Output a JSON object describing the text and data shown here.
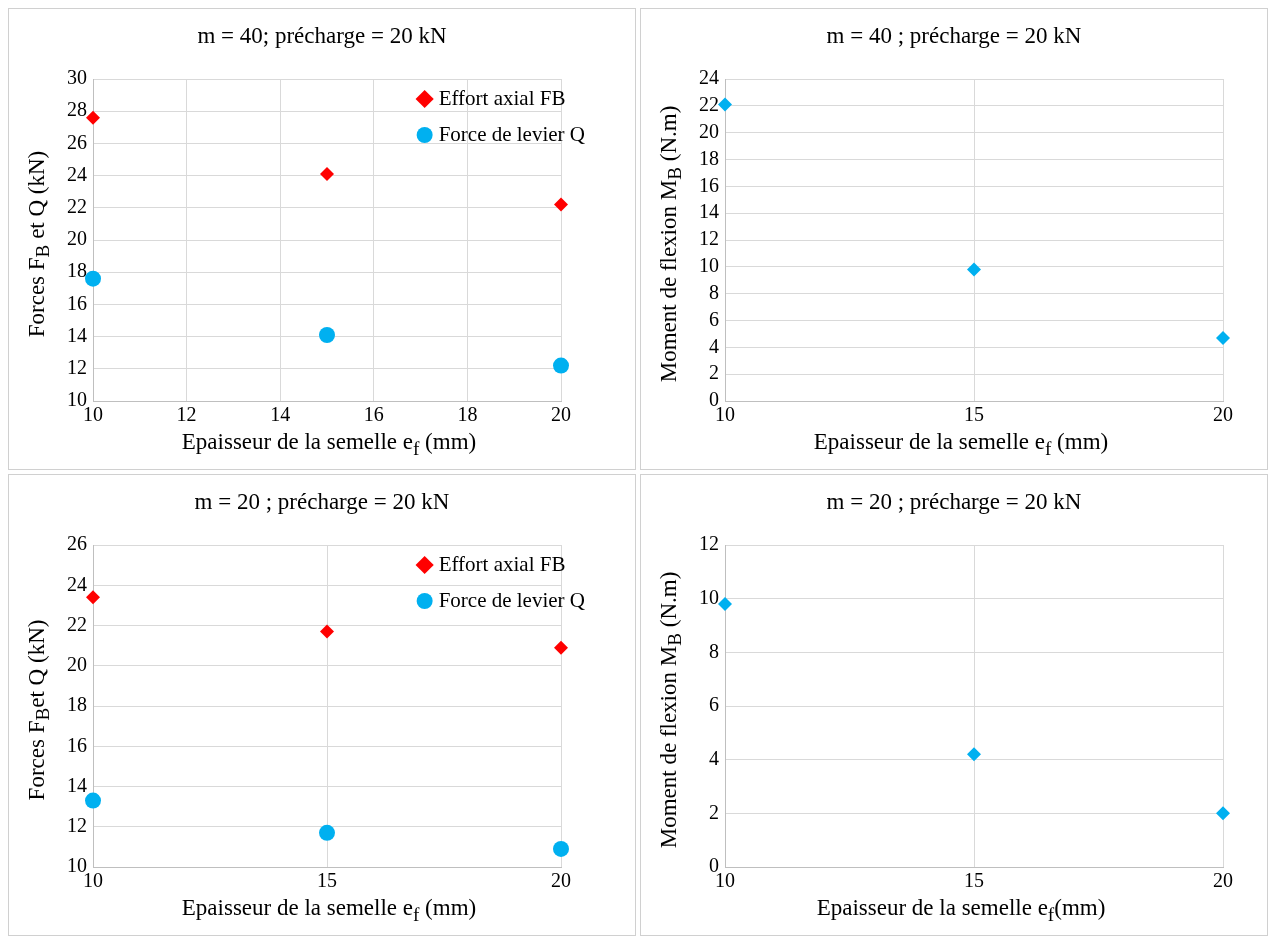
{
  "chart_data": [
    {
      "type": "scatter",
      "title": "m = 40; précharge = 20 kN",
      "xlabel": "Epaisseur de la semelle e$_{f}$ (mm)",
      "ylabel": "Forces F$_{B}$ et Q (kN)",
      "x": [
        10,
        15,
        20
      ],
      "xlim": [
        10,
        20
      ],
      "xticks": [
        10,
        12,
        14,
        16,
        18,
        20
      ],
      "ylim": [
        10,
        30
      ],
      "yticks": [
        10,
        12,
        14,
        16,
        18,
        20,
        22,
        24,
        26,
        28,
        30
      ],
      "grid": true,
      "legend": "top right",
      "series": [
        {
          "name": "Effort axial FB",
          "color": "#ff0000",
          "marker": "diamond",
          "values": [
            27.6,
            24.1,
            22.2
          ]
        },
        {
          "name": "Force de levier Q",
          "color": "#00b0f0",
          "marker": "circle",
          "values": [
            17.6,
            14.1,
            12.2
          ]
        }
      ]
    },
    {
      "type": "scatter",
      "title": "m = 40 ; précharge = 20 kN",
      "xlabel": "Epaisseur de la semelle e$_{f}$ (mm)",
      "ylabel": "Moment de flexion M$_{B}$ (N.m)",
      "x": [
        10,
        15,
        20
      ],
      "xlim": [
        10,
        20
      ],
      "xticks": [
        10,
        15,
        20
      ],
      "ylim": [
        0,
        24
      ],
      "yticks": [
        0,
        2,
        4,
        6,
        8,
        10,
        12,
        14,
        16,
        18,
        20,
        22,
        24
      ],
      "grid": true,
      "series": [
        {
          "color": "#00b0f0",
          "marker": "diamond",
          "values": [
            22.1,
            9.8,
            4.7
          ]
        }
      ]
    },
    {
      "type": "scatter",
      "title": "m = 20  ; précharge = 20 kN",
      "xlabel": "Epaisseur de la semelle e$_{f}$ (mm)",
      "ylabel": "Forces F$_{B}$et Q (kN)",
      "x": [
        10,
        15,
        20
      ],
      "xlim": [
        10,
        20
      ],
      "xticks": [
        10,
        15,
        20
      ],
      "ylim": [
        10,
        26
      ],
      "yticks": [
        10,
        12,
        14,
        16,
        18,
        20,
        22,
        24,
        26
      ],
      "grid": true,
      "legend": "top right",
      "series": [
        {
          "name": "Effort axial FB",
          "color": "#ff0000",
          "marker": "diamond",
          "values": [
            23.4,
            21.7,
            20.9
          ]
        },
        {
          "name": "Force de levier Q",
          "color": "#00b0f0",
          "marker": "circle",
          "values": [
            13.3,
            11.7,
            10.9
          ]
        }
      ]
    },
    {
      "type": "scatter",
      "title": "m = 20 ; précharge = 20 kN",
      "xlabel": "Epaisseur de la semelle e$_{f}$(mm)",
      "ylabel": "Moment de flexion M$_{B}$ (N.m)",
      "x": [
        10,
        15,
        20
      ],
      "xlim": [
        10,
        20
      ],
      "xticks": [
        10,
        15,
        20
      ],
      "ylim": [
        0,
        12
      ],
      "yticks": [
        0,
        2,
        4,
        6,
        8,
        10,
        12
      ],
      "grid": true,
      "series": [
        {
          "color": "#00b0f0",
          "marker": "diamond",
          "values": [
            9.8,
            4.2,
            2.0
          ]
        }
      ]
    }
  ]
}
